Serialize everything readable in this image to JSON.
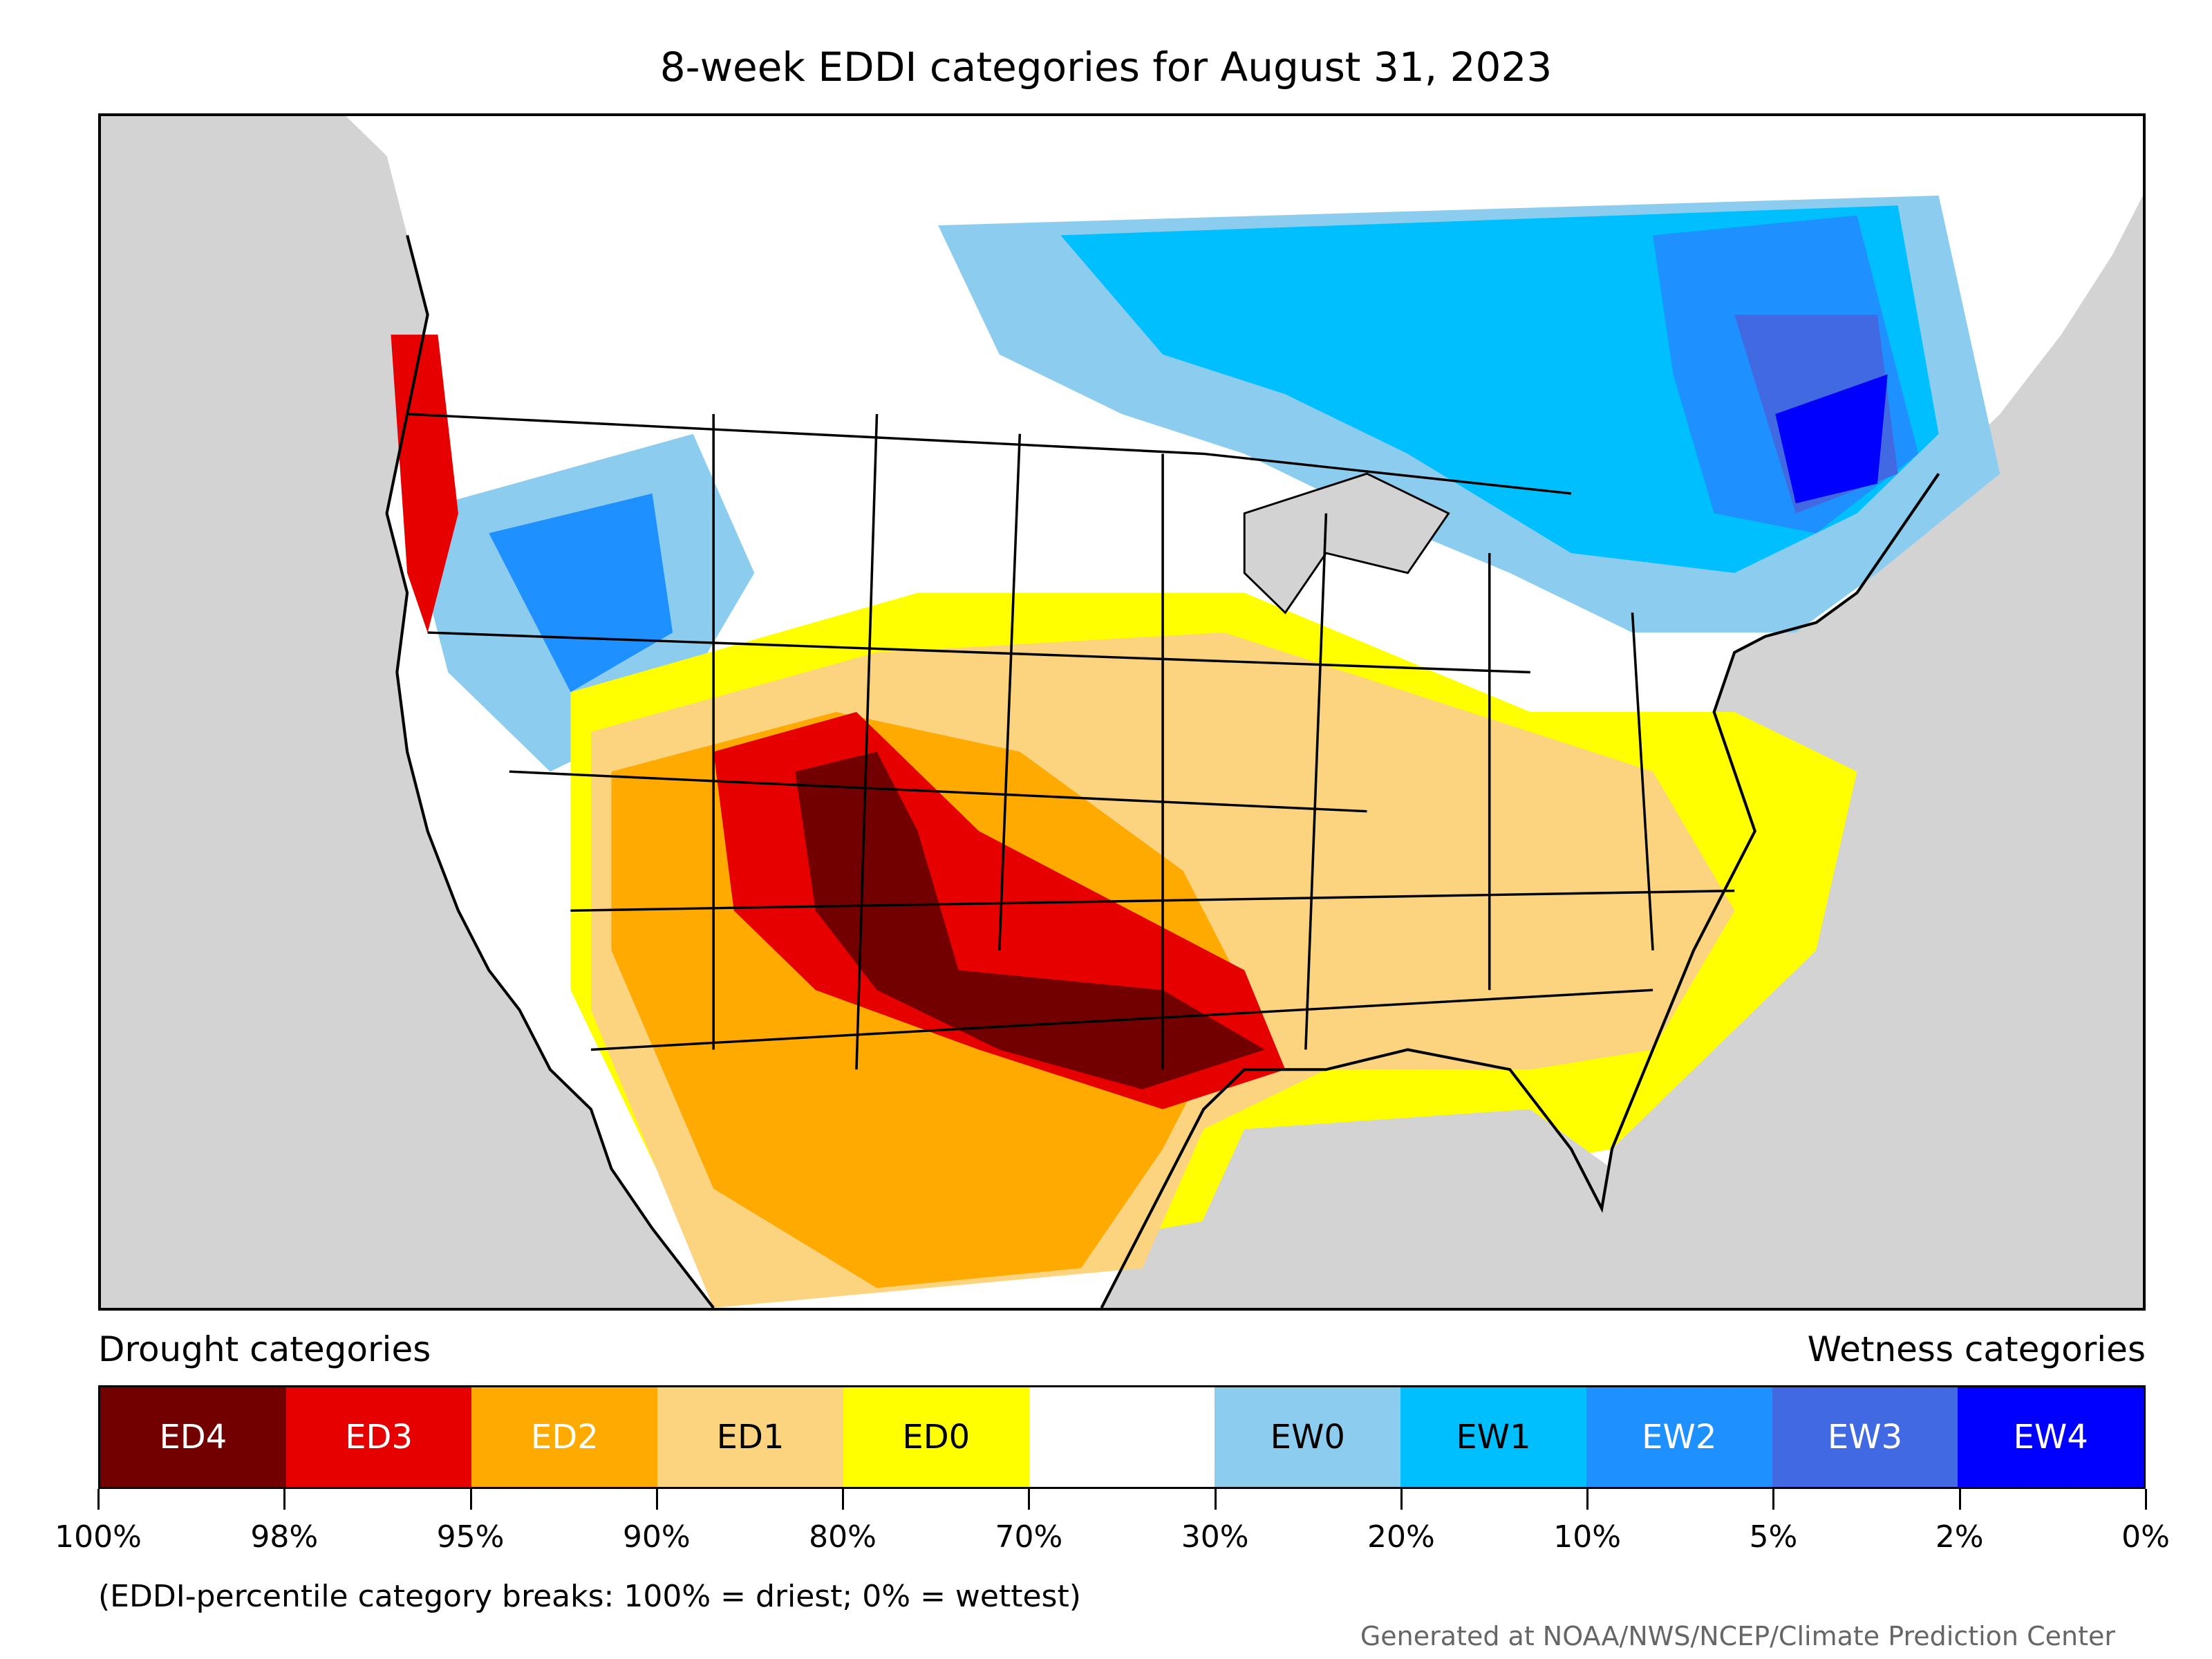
{
  "title": "8-week EDDI categories for August 31, 2023",
  "legend": {
    "drought_heading": "Drought categories",
    "wetness_heading": "Wetness categories",
    "categories": [
      {
        "label": "ED4",
        "color": "#730000",
        "text_color": "#ffffff"
      },
      {
        "label": "ED3",
        "color": "#e60000",
        "text_color": "#ffffff"
      },
      {
        "label": "ED2",
        "color": "#ffaa00",
        "text_color": "#ffffff"
      },
      {
        "label": "ED1",
        "color": "#fcd37f",
        "text_color": "#000000"
      },
      {
        "label": "ED0",
        "color": "#ffff00",
        "text_color": "#000000"
      },
      {
        "label": "",
        "color": "#ffffff",
        "text_color": "#000000"
      },
      {
        "label": "EW0",
        "color": "#8ccdef",
        "text_color": "#000000"
      },
      {
        "label": "EW1",
        "color": "#00bfff",
        "text_color": "#000000"
      },
      {
        "label": "EW2",
        "color": "#1e90ff",
        "text_color": "#ffffff"
      },
      {
        "label": "EW3",
        "color": "#4169e1",
        "text_color": "#ffffff"
      },
      {
        "label": "EW4",
        "color": "#0000ff",
        "text_color": "#ffffff"
      }
    ],
    "breaks": [
      "100%",
      "98%",
      "95%",
      "90%",
      "80%",
      "70%",
      "30%",
      "20%",
      "10%",
      "5%",
      "2%",
      "0%"
    ]
  },
  "note": "(EDDI-percentile category breaks: 100% = driest; 0% = wettest)",
  "credit": "Generated at NOAA/NWS/NCEP/Climate Prediction Center",
  "map_colors": {
    "ocean": "#d3d3d3",
    "land": "#ffffff",
    "borders": "#000000"
  }
}
